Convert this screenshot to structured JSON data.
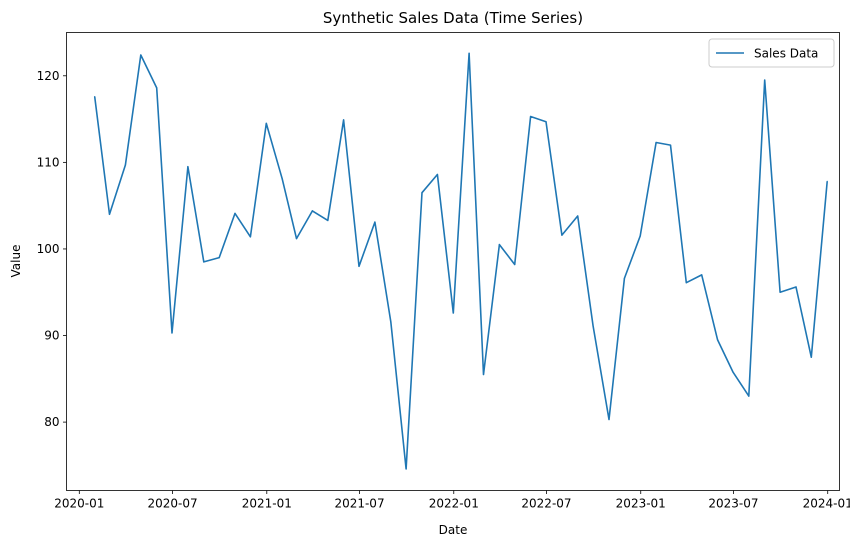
{
  "chart_data": {
    "type": "line",
    "title": "Synthetic Sales Data (Time Series)",
    "xlabel": "Date",
    "ylabel": "Value",
    "x_ticks": [
      "2020-01",
      "2020-07",
      "2021-01",
      "2021-07",
      "2022-01",
      "2022-07",
      "2023-01",
      "2023-07",
      "2024-01"
    ],
    "y_ticks": [
      80,
      90,
      100,
      110,
      120
    ],
    "ylim": [
      72.1,
      125.0
    ],
    "xlim": [
      "2019-12-07",
      "2024-01-24"
    ],
    "legend": {
      "position": "upper-right",
      "entries": [
        "Sales Data"
      ]
    },
    "grid": false,
    "series": [
      {
        "name": "Sales Data",
        "color": "#1f77b4",
        "x": [
          "2020-01-31",
          "2020-02-29",
          "2020-03-31",
          "2020-04-30",
          "2020-05-31",
          "2020-06-30",
          "2020-07-31",
          "2020-08-31",
          "2020-09-30",
          "2020-10-31",
          "2020-11-30",
          "2020-12-31",
          "2021-01-31",
          "2021-02-28",
          "2021-03-31",
          "2021-04-30",
          "2021-05-31",
          "2021-06-30",
          "2021-07-31",
          "2021-08-31",
          "2021-09-30",
          "2021-10-31",
          "2021-11-30",
          "2021-12-31",
          "2022-01-31",
          "2022-02-28",
          "2022-03-31",
          "2022-04-30",
          "2022-05-31",
          "2022-06-30",
          "2022-07-31",
          "2022-08-31",
          "2022-09-30",
          "2022-10-31",
          "2022-11-30",
          "2022-12-31",
          "2023-01-31",
          "2023-02-28",
          "2023-03-31",
          "2023-04-30",
          "2023-05-31",
          "2023-06-30",
          "2023-07-31",
          "2023-08-31",
          "2023-09-30",
          "2023-10-31",
          "2023-11-30",
          "2023-12-31"
        ],
        "values": [
          117.6,
          104.0,
          109.7,
          122.4,
          118.6,
          90.3,
          109.5,
          98.5,
          99.0,
          104.1,
          101.4,
          114.5,
          108.1,
          101.2,
          104.4,
          103.3,
          114.9,
          98.0,
          103.1,
          91.6,
          74.6,
          106.5,
          108.6,
          92.6,
          122.6,
          85.5,
          100.5,
          98.2,
          115.3,
          114.7,
          101.6,
          103.8,
          91.1,
          80.3,
          96.6,
          101.5,
          112.3,
          112.0,
          96.1,
          97.0,
          89.5,
          85.8,
          83.0,
          119.5,
          95.0,
          95.6,
          87.5,
          107.8
        ]
      }
    ]
  }
}
